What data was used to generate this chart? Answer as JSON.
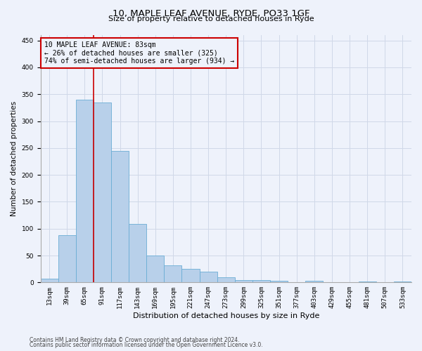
{
  "title1": "10, MAPLE LEAF AVENUE, RYDE, PO33 1GF",
  "title2": "Size of property relative to detached houses in Ryde",
  "xlabel": "Distribution of detached houses by size in Ryde",
  "ylabel": "Number of detached properties",
  "footnote1": "Contains HM Land Registry data © Crown copyright and database right 2024.",
  "footnote2": "Contains public sector information licensed under the Open Government Licence v3.0.",
  "annotation_line1": "10 MAPLE LEAF AVENUE: 83sqm",
  "annotation_line2": "← 26% of detached houses are smaller (325)",
  "annotation_line3": "74% of semi-detached houses are larger (934) →",
  "bin_labels": [
    "13sqm",
    "39sqm",
    "65sqm",
    "91sqm",
    "117sqm",
    "143sqm",
    "169sqm",
    "195sqm",
    "221sqm",
    "247sqm",
    "273sqm",
    "299sqm",
    "325sqm",
    "351sqm",
    "377sqm",
    "403sqm",
    "429sqm",
    "455sqm",
    "481sqm",
    "507sqm",
    "533sqm"
  ],
  "bar_values": [
    7,
    88,
    340,
    335,
    245,
    109,
    50,
    32,
    25,
    20,
    10,
    5,
    5,
    3,
    0,
    3,
    0,
    0,
    2,
    0,
    2
  ],
  "bar_color": "#b8d0ea",
  "bar_edge_color": "#6aadd5",
  "vline_color": "#cc0000",
  "box_color": "#cc0000",
  "background_color": "#eef2fb",
  "grid_color": "#d0d8e8",
  "ylim": [
    0,
    460
  ],
  "yticks": [
    0,
    50,
    100,
    150,
    200,
    250,
    300,
    350,
    400,
    450
  ],
  "title1_fontsize": 9.5,
  "title2_fontsize": 8.0,
  "ylabel_fontsize": 7.5,
  "xlabel_fontsize": 8.0,
  "tick_fontsize": 6.5,
  "annot_fontsize": 7.0,
  "footnote_fontsize": 5.5
}
